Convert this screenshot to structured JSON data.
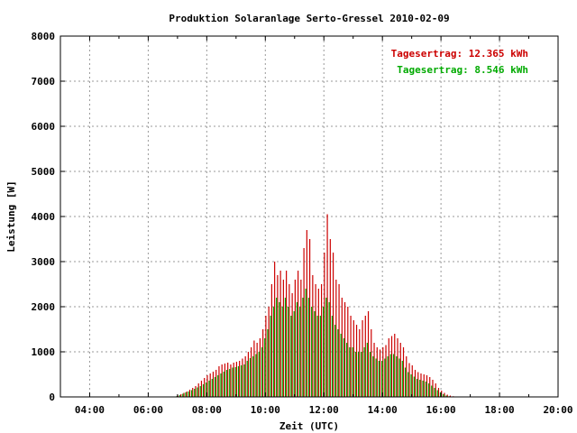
{
  "chart_data": {
    "type": "bar",
    "title": "Produktion Solaranlage Serto-Gressel 2010-02-09",
    "xlabel": "Zeit (UTC)",
    "ylabel": "Leistung [W]",
    "xlim": [
      3,
      20
    ],
    "ylim": [
      0,
      8000
    ],
    "x_ticks": [
      "04:00",
      "06:00",
      "08:00",
      "10:00",
      "12:00",
      "14:00",
      "16:00",
      "18:00",
      "20:00"
    ],
    "x_tick_values": [
      4,
      6,
      8,
      10,
      12,
      14,
      16,
      18,
      20
    ],
    "y_ticks": [
      0,
      1000,
      2000,
      3000,
      4000,
      5000,
      6000,
      7000,
      8000
    ],
    "grid": true,
    "legend_position": "top-right",
    "legend": [
      {
        "label": "Tagesertrag: 12.365 kWh",
        "color": "#cc0000"
      },
      {
        "label": "Tagesertrag: 8.546 kWh",
        "color": "#00aa00"
      }
    ],
    "x": [
      7.0,
      7.1,
      7.2,
      7.3,
      7.4,
      7.5,
      7.6,
      7.7,
      7.8,
      7.9,
      8.0,
      8.1,
      8.2,
      8.3,
      8.4,
      8.5,
      8.6,
      8.7,
      8.8,
      8.9,
      9.0,
      9.1,
      9.2,
      9.3,
      9.4,
      9.5,
      9.6,
      9.7,
      9.8,
      9.9,
      10.0,
      10.1,
      10.2,
      10.3,
      10.4,
      10.5,
      10.6,
      10.7,
      10.8,
      10.9,
      11.0,
      11.1,
      11.2,
      11.3,
      11.4,
      11.5,
      11.6,
      11.7,
      11.8,
      11.9,
      12.0,
      12.1,
      12.2,
      12.3,
      12.4,
      12.5,
      12.6,
      12.7,
      12.8,
      12.9,
      13.0,
      13.1,
      13.2,
      13.3,
      13.4,
      13.5,
      13.6,
      13.7,
      13.8,
      13.9,
      14.0,
      14.1,
      14.2,
      14.3,
      14.4,
      14.5,
      14.6,
      14.7,
      14.8,
      14.9,
      15.0,
      15.1,
      15.2,
      15.3,
      15.4,
      15.5,
      15.6,
      15.7,
      15.8,
      15.9,
      16.0,
      16.1,
      16.2,
      16.3,
      16.4
    ],
    "series": [
      {
        "name": "Tagesertrag: 12.365 kWh",
        "color": "#cc0000",
        "values": [
          30,
          60,
          90,
          120,
          160,
          200,
          240,
          300,
          360,
          420,
          480,
          520,
          560,
          600,
          680,
          720,
          740,
          760,
          720,
          760,
          780,
          800,
          850,
          900,
          1000,
          1100,
          1250,
          1200,
          1300,
          1500,
          1800,
          2000,
          2500,
          3000,
          2700,
          2800,
          2600,
          2800,
          2500,
          2300,
          2600,
          2800,
          2600,
          3300,
          3700,
          3500,
          2700,
          2500,
          2400,
          2500,
          3200,
          4050,
          3500,
          3200,
          2600,
          2500,
          2200,
          2100,
          2000,
          1800,
          1700,
          1600,
          1500,
          1700,
          1800,
          1900,
          1500,
          1200,
          1100,
          1050,
          1100,
          1150,
          1300,
          1350,
          1400,
          1300,
          1200,
          1100,
          900,
          750,
          700,
          600,
          550,
          520,
          500,
          480,
          440,
          380,
          300,
          200,
          140,
          90,
          50,
          30,
          15
        ]
      },
      {
        "name": "Tagesertrag: 8.546 kWh",
        "color": "#00aa00",
        "values": [
          20,
          40,
          70,
          100,
          120,
          150,
          180,
          210,
          240,
          280,
          320,
          360,
          400,
          440,
          480,
          520,
          560,
          600,
          620,
          650,
          660,
          680,
          700,
          720,
          800,
          860,
          900,
          950,
          1000,
          1100,
          1300,
          1500,
          1800,
          2000,
          2200,
          2100,
          2000,
          2200,
          2000,
          1800,
          1900,
          2100,
          2000,
          2200,
          2400,
          2200,
          2000,
          1900,
          1800,
          1800,
          2000,
          2200,
          2100,
          1800,
          1600,
          1500,
          1400,
          1300,
          1200,
          1100,
          1100,
          1000,
          1000,
          1000,
          1100,
          1200,
          1000,
          900,
          850,
          800,
          800,
          850,
          900,
          950,
          950,
          900,
          850,
          800,
          650,
          550,
          500,
          450,
          400,
          380,
          360,
          340,
          300,
          250,
          200,
          150,
          100,
          60,
          30,
          15,
          8
        ]
      }
    ]
  }
}
